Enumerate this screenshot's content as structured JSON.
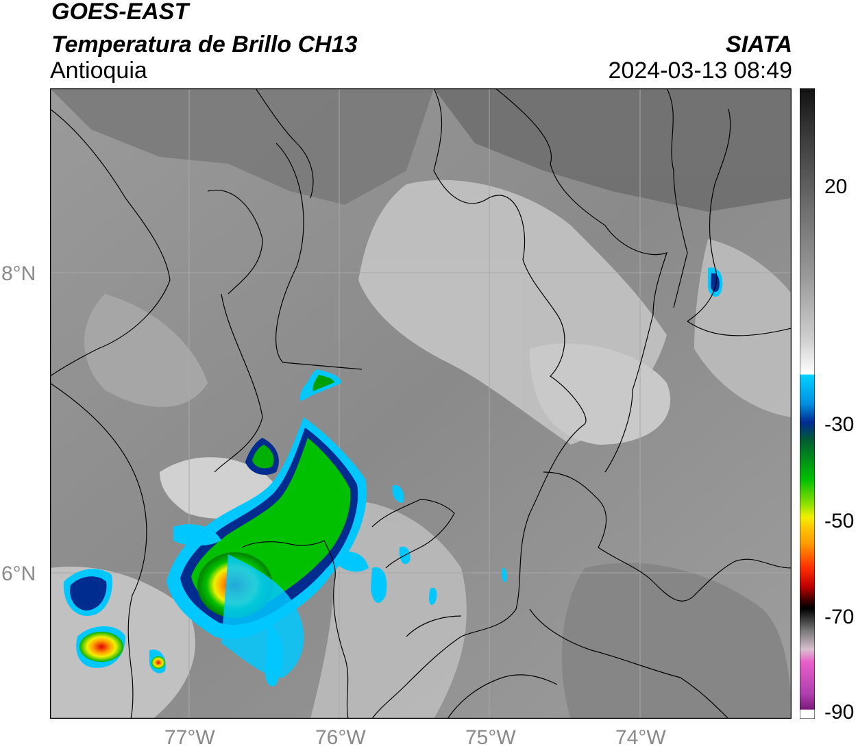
{
  "header": {
    "satellite": "GOES-EAST",
    "product": "Temperatura de Brillo CH13",
    "region": "Antioquia",
    "source": "SIATA",
    "datetime": "2024-03-13 08:49"
  },
  "map": {
    "lat_labels": [
      "8°N",
      "6°N"
    ],
    "lon_labels": [
      "77°W",
      "76°W",
      "75°W",
      "74°W"
    ],
    "background_color": "#8c8c8c",
    "border_color": "#000000",
    "grid_color": "#a8a8a8"
  },
  "colorbar": {
    "tick_labels": [
      "20",
      "-30",
      "-50",
      "-70",
      "-90"
    ],
    "colors": {
      "warm": "#111111",
      "mid": "#ffffff",
      "cyan": "#00d2ff",
      "blue": "#002b8f",
      "green": "#00c000",
      "yellow": "#f0f000",
      "orange": "#ffa000",
      "red": "#e00000",
      "dark_red": "#4a0000",
      "pink": "#e85fc8",
      "purple": "#7a1a7a"
    }
  }
}
